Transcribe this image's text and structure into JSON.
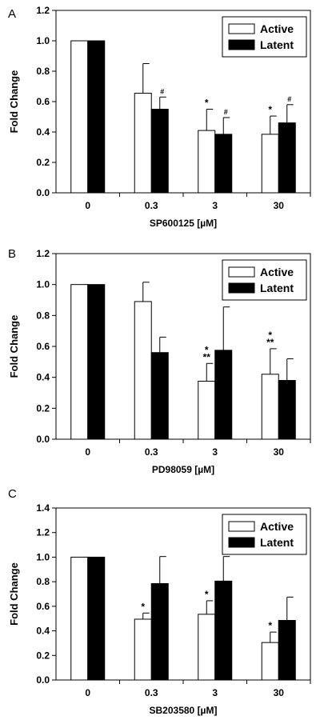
{
  "chart_data": [
    {
      "type": "bar",
      "panel_label": "A",
      "categories": [
        "0",
        "0.3",
        "3",
        "30"
      ],
      "xlabel": "SP600125 [µM]",
      "ylabel": "Fold Change",
      "ylim": [
        0,
        1.2
      ],
      "yticks": [
        "0.0",
        "0.2",
        "0.4",
        "0.6",
        "0.8",
        "1.0",
        "1.2"
      ],
      "legend_position": "top-right",
      "series": [
        {
          "name": "Active",
          "fill": "#ffffff",
          "values": [
            1.0,
            0.655,
            0.41,
            0.385
          ],
          "errors": [
            0,
            0.195,
            0.14,
            0.12
          ],
          "markers": [
            "",
            "",
            "*",
            "*"
          ]
        },
        {
          "name": "Latent",
          "fill": "#000000",
          "values": [
            1.0,
            0.55,
            0.385,
            0.46
          ],
          "errors": [
            0,
            0.08,
            0.11,
            0.12
          ],
          "markers": [
            "",
            "#",
            "#",
            "#"
          ]
        }
      ]
    },
    {
      "type": "bar",
      "panel_label": "B",
      "categories": [
        "0",
        "0.3",
        "3",
        "30"
      ],
      "xlabel": "PD98059 [µM]",
      "ylabel": "Fold Change",
      "ylim": [
        0,
        1.2
      ],
      "yticks": [
        "0.0",
        "0.2",
        "0.4",
        "0.6",
        "0.8",
        "1.0",
        "1.2"
      ],
      "legend_position": "top-right",
      "series": [
        {
          "name": "Active",
          "fill": "#ffffff",
          "values": [
            1.0,
            0.89,
            0.375,
            0.42
          ],
          "errors": [
            0,
            0.125,
            0.115,
            0.165
          ],
          "markers": [
            "",
            "",
            "*\n**",
            "*\n**"
          ]
        },
        {
          "name": "Latent",
          "fill": "#000000",
          "values": [
            1.0,
            0.56,
            0.575,
            0.38
          ],
          "errors": [
            0,
            0.1,
            0.28,
            0.14
          ],
          "markers": [
            "",
            "",
            "",
            ""
          ]
        }
      ]
    },
    {
      "type": "bar",
      "panel_label": "C",
      "categories": [
        "0",
        "0.3",
        "3",
        "30"
      ],
      "xlabel": "SB203580 [µM]",
      "ylabel": "Fold Change",
      "ylim": [
        0,
        1.4
      ],
      "yticks": [
        "0.0",
        "0.2",
        "0.4",
        "0.6",
        "0.8",
        "1.0",
        "1.2",
        "1.4"
      ],
      "legend_position": "top-right",
      "series": [
        {
          "name": "Active",
          "fill": "#ffffff",
          "values": [
            1.0,
            0.495,
            0.535,
            0.305
          ],
          "errors": [
            0,
            0.05,
            0.11,
            0.085
          ],
          "markers": [
            "",
            "*",
            "*",
            "*"
          ]
        },
        {
          "name": "Latent",
          "fill": "#000000",
          "values": [
            1.0,
            0.785,
            0.805,
            0.485
          ],
          "errors": [
            0,
            0.22,
            0.2,
            0.19
          ],
          "markers": [
            "",
            "",
            "",
            ""
          ]
        }
      ]
    }
  ]
}
